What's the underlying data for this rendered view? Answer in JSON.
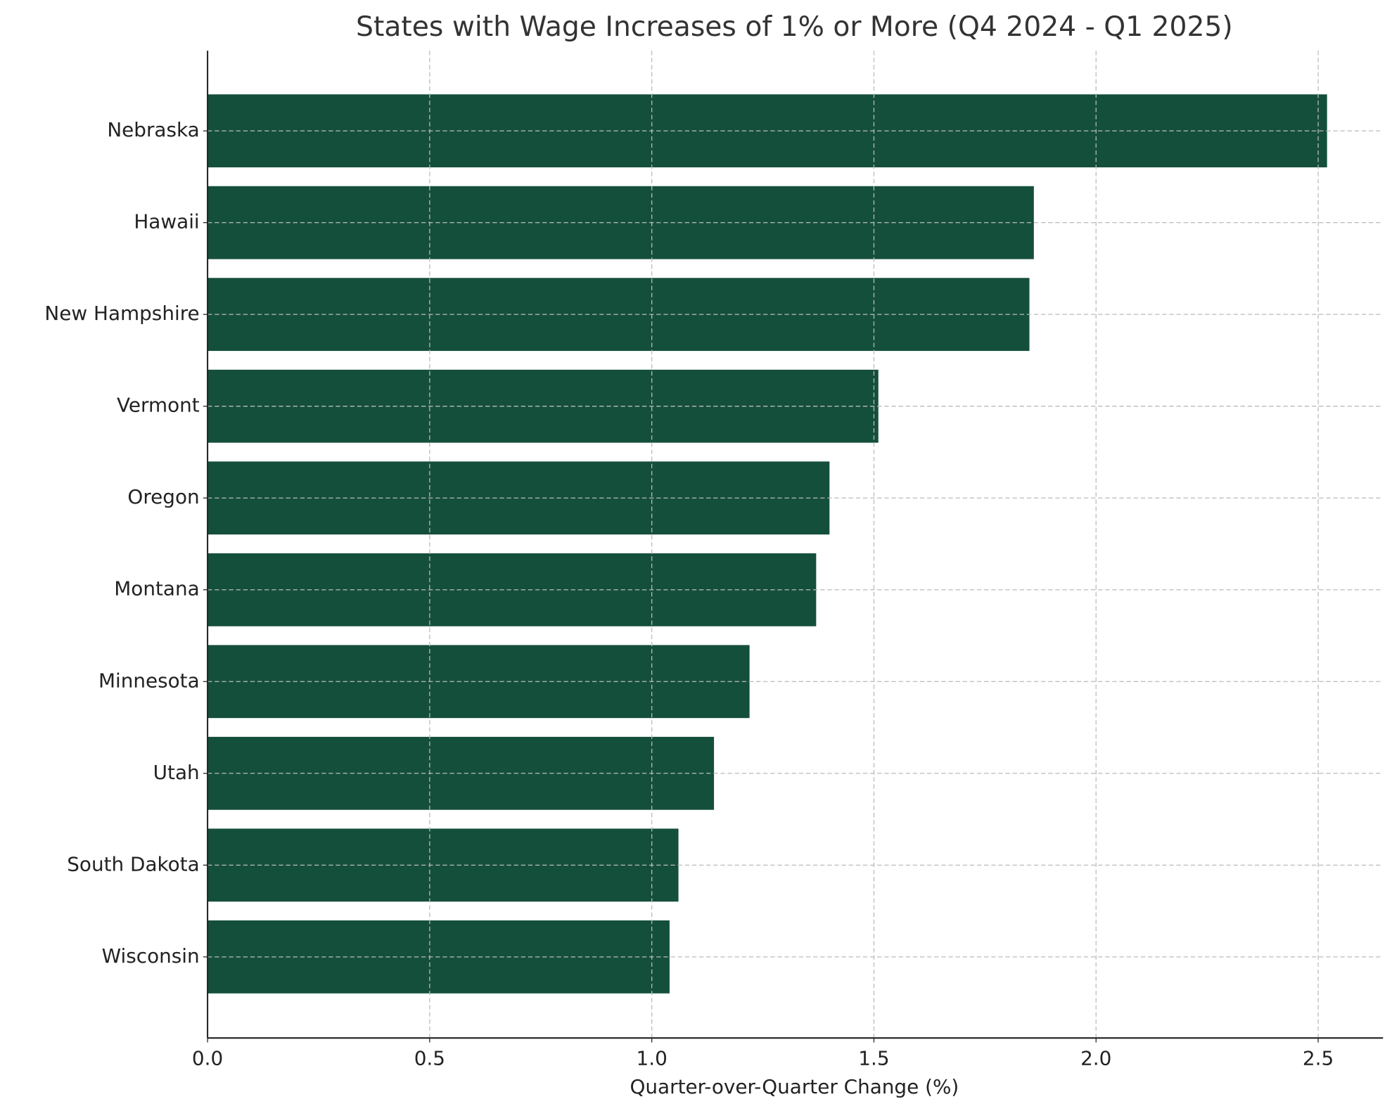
{
  "chart_data": {
    "type": "barh",
    "title": "States with Wage Increases of 1% or More (Q4 2024 - Q1 2025)",
    "xlabel": "Quarter-over-Quarter Change (%)",
    "categories": [
      "Nebraska",
      "Hawaii",
      "New Hampshire",
      "Vermont",
      "Oregon",
      "Montana",
      "Minnesota",
      "Utah",
      "South Dakota",
      "Wisconsin"
    ],
    "values": [
      2.52,
      1.86,
      1.85,
      1.51,
      1.4,
      1.37,
      1.22,
      1.14,
      1.06,
      1.04
    ],
    "color": "#144f3c",
    "xlim": [
      0,
      2.646
    ],
    "xticks": [
      {
        "value": 0,
        "label": "0.0"
      },
      {
        "value": 0.5,
        "label": "0.5"
      },
      {
        "value": 1,
        "label": "1.0"
      },
      {
        "value": 1.5,
        "label": "1.5"
      },
      {
        "value": 2,
        "label": "2.0"
      },
      {
        "value": 2.5,
        "label": "2.5"
      }
    ],
    "grid": true
  }
}
